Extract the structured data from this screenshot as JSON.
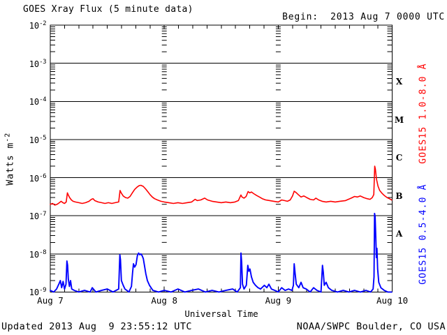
{
  "header": {
    "title": "GOES Xray Flux (5 minute data)",
    "begin_label": "Begin:  2013 Aug 7 0000 UTC"
  },
  "footer": {
    "updated": "Updated 2013 Aug  9 23:55:12 UTC",
    "source": "NOAA/SWPC Boulder, CO USA"
  },
  "chart_data": {
    "type": "line",
    "title": "GOES Xray Flux (5 minute data)",
    "xlabel": "Universal Time",
    "ylabel_base": "Watts m",
    "ylabel_exp": "-2",
    "background_color": "#ffffff",
    "axis_color": "#000000",
    "x_start_label": "2013 Aug 7 0000 UTC",
    "x_range_days": 3,
    "x_minor_tick_hours": 3,
    "x_tick_labels": [
      "Aug 7",
      "Aug 8",
      "Aug 9",
      "Aug 10"
    ],
    "y_tick_exponents": [
      "-2",
      "-3",
      "-4",
      "-5",
      "-6",
      "-7",
      "-8",
      "-9"
    ],
    "ylim": [
      1e-09,
      0.01
    ],
    "class_letters": [
      "X",
      "M",
      "C",
      "B",
      "A"
    ],
    "grid": {
      "horizontal_decade_lines": true,
      "vertical_day_dash_columns": true,
      "legend_position": "right-rotated"
    },
    "series": [
      {
        "id": "goes15-long",
        "name": "GOES15 1.0-8.0 Å",
        "color": "#ff0000",
        "points": [
          [
            0.0,
            2e-07
          ],
          [
            0.02,
            2.1e-07
          ],
          [
            0.04,
            1.9e-07
          ],
          [
            0.06,
            2e-07
          ],
          [
            0.08,
            2.2e-07
          ],
          [
            0.095,
            2.4e-07
          ],
          [
            0.11,
            2.2e-07
          ],
          [
            0.125,
            2.1e-07
          ],
          [
            0.14,
            2.3e-07
          ],
          [
            0.15,
            4e-07
          ],
          [
            0.158,
            3.5e-07
          ],
          [
            0.17,
            3e-07
          ],
          [
            0.185,
            2.6e-07
          ],
          [
            0.2,
            2.4e-07
          ],
          [
            0.22,
            2.3e-07
          ],
          [
            0.25,
            2.2e-07
          ],
          [
            0.28,
            2.1e-07
          ],
          [
            0.31,
            2.2e-07
          ],
          [
            0.34,
            2.4e-07
          ],
          [
            0.36,
            2.7e-07
          ],
          [
            0.375,
            2.8e-07
          ],
          [
            0.39,
            2.5e-07
          ],
          [
            0.42,
            2.3e-07
          ],
          [
            0.45,
            2.2e-07
          ],
          [
            0.48,
            2.1e-07
          ],
          [
            0.51,
            2.2e-07
          ],
          [
            0.54,
            2.1e-07
          ],
          [
            0.57,
            2.2e-07
          ],
          [
            0.6,
            2.3e-07
          ],
          [
            0.612,
            4.6e-07
          ],
          [
            0.622,
            4e-07
          ],
          [
            0.64,
            3.3e-07
          ],
          [
            0.66,
            3e-07
          ],
          [
            0.68,
            2.9e-07
          ],
          [
            0.7,
            3.2e-07
          ],
          [
            0.72,
            4e-07
          ],
          [
            0.74,
            4.9e-07
          ],
          [
            0.76,
            5.6e-07
          ],
          [
            0.78,
            6.2e-07
          ],
          [
            0.795,
            6.3e-07
          ],
          [
            0.815,
            5.9e-07
          ],
          [
            0.835,
            5.1e-07
          ],
          [
            0.855,
            4.3e-07
          ],
          [
            0.875,
            3.6e-07
          ],
          [
            0.895,
            3.1e-07
          ],
          [
            0.915,
            2.8e-07
          ],
          [
            0.94,
            2.6e-07
          ],
          [
            0.97,
            2.4e-07
          ],
          [
            1.0,
            2.3e-07
          ],
          [
            1.04,
            2.2e-07
          ],
          [
            1.08,
            2.1e-07
          ],
          [
            1.12,
            2.2e-07
          ],
          [
            1.16,
            2.1e-07
          ],
          [
            1.2,
            2.2e-07
          ],
          [
            1.24,
            2.3e-07
          ],
          [
            1.27,
            2.7e-07
          ],
          [
            1.29,
            2.5e-07
          ],
          [
            1.32,
            2.6e-07
          ],
          [
            1.355,
            2.9e-07
          ],
          [
            1.38,
            2.6e-07
          ],
          [
            1.42,
            2.4e-07
          ],
          [
            1.46,
            2.3e-07
          ],
          [
            1.5,
            2.2e-07
          ],
          [
            1.54,
            2.3e-07
          ],
          [
            1.58,
            2.2e-07
          ],
          [
            1.62,
            2.3e-07
          ],
          [
            1.65,
            2.5e-07
          ],
          [
            1.672,
            3.5e-07
          ],
          [
            1.682,
            3.1e-07
          ],
          [
            1.7,
            2.9e-07
          ],
          [
            1.718,
            3.2e-07
          ],
          [
            1.735,
            4.3e-07
          ],
          [
            1.75,
            4e-07
          ],
          [
            1.765,
            4.2e-07
          ],
          [
            1.785,
            3.8e-07
          ],
          [
            1.81,
            3.4e-07
          ],
          [
            1.835,
            3.1e-07
          ],
          [
            1.86,
            2.8e-07
          ],
          [
            1.89,
            2.6e-07
          ],
          [
            1.925,
            2.5e-07
          ],
          [
            1.96,
            2.4e-07
          ],
          [
            2.0,
            2.3e-07
          ],
          [
            2.03,
            2.6e-07
          ],
          [
            2.055,
            2.5e-07
          ],
          [
            2.08,
            2.4e-07
          ],
          [
            2.105,
            2.6e-07
          ],
          [
            2.125,
            3.3e-07
          ],
          [
            2.14,
            4.4e-07
          ],
          [
            2.155,
            4.1e-07
          ],
          [
            2.175,
            3.6e-07
          ],
          [
            2.2,
            3.1e-07
          ],
          [
            2.225,
            3.3e-07
          ],
          [
            2.25,
            3e-07
          ],
          [
            2.28,
            2.7e-07
          ],
          [
            2.31,
            2.6e-07
          ],
          [
            2.33,
            2.9e-07
          ],
          [
            2.355,
            2.6e-07
          ],
          [
            2.385,
            2.4e-07
          ],
          [
            2.42,
            2.3e-07
          ],
          [
            2.46,
            2.4e-07
          ],
          [
            2.5,
            2.3e-07
          ],
          [
            2.54,
            2.4e-07
          ],
          [
            2.59,
            2.5e-07
          ],
          [
            2.64,
            2.9e-07
          ],
          [
            2.67,
            3.2e-07
          ],
          [
            2.695,
            3.1e-07
          ],
          [
            2.72,
            3.3e-07
          ],
          [
            2.75,
            3e-07
          ],
          [
            2.78,
            2.8e-07
          ],
          [
            2.805,
            2.7e-07
          ],
          [
            2.825,
            3e-07
          ],
          [
            2.838,
            3.6e-07
          ],
          [
            2.846,
            2e-06
          ],
          [
            2.852,
            1.7e-06
          ],
          [
            2.862,
            9e-07
          ],
          [
            2.875,
            6e-07
          ],
          [
            2.89,
            4.6e-07
          ],
          [
            2.91,
            3.9e-07
          ],
          [
            2.93,
            3.4e-07
          ],
          [
            2.955,
            3e-07
          ],
          [
            2.975,
            2.8e-07
          ],
          [
            2.995,
            2.6e-07
          ]
        ]
      },
      {
        "id": "goes15-short",
        "name": "GOES15 0.5-4.0 Å",
        "color": "#0000ff",
        "points": [
          [
            0.0,
            1.1e-09
          ],
          [
            0.03,
            1e-09
          ],
          [
            0.055,
            1.2e-09
          ],
          [
            0.075,
            1.6e-09
          ],
          [
            0.088,
            2e-09
          ],
          [
            0.1,
            1.3e-09
          ],
          [
            0.112,
            1.9e-09
          ],
          [
            0.125,
            1.2e-09
          ],
          [
            0.138,
            1.6e-09
          ],
          [
            0.146,
            6.5e-09
          ],
          [
            0.152,
            5e-09
          ],
          [
            0.158,
            2.2e-09
          ],
          [
            0.168,
            1.4e-09
          ],
          [
            0.178,
            2e-09
          ],
          [
            0.188,
            1.2e-09
          ],
          [
            0.21,
            1.1e-09
          ],
          [
            0.25,
            1e-09
          ],
          [
            0.3,
            1.1e-09
          ],
          [
            0.35,
            1e-09
          ],
          [
            0.368,
            1.3e-09
          ],
          [
            0.4,
            1e-09
          ],
          [
            0.45,
            1.1e-09
          ],
          [
            0.5,
            1.2e-09
          ],
          [
            0.55,
            1e-09
          ],
          [
            0.6,
            1.2e-09
          ],
          [
            0.61,
            9.5e-09
          ],
          [
            0.616,
            7e-09
          ],
          [
            0.624,
            2e-09
          ],
          [
            0.64,
            1.5e-09
          ],
          [
            0.655,
            1.2e-09
          ],
          [
            0.69,
            1e-09
          ],
          [
            0.712,
            1.4e-09
          ],
          [
            0.722,
            3.2e-09
          ],
          [
            0.73,
            5.5e-09
          ],
          [
            0.74,
            4.5e-09
          ],
          [
            0.752,
            5.2e-09
          ],
          [
            0.764,
            9e-09
          ],
          [
            0.775,
            1.05e-08
          ],
          [
            0.785,
            9.5e-09
          ],
          [
            0.795,
            1e-08
          ],
          [
            0.806,
            9e-09
          ],
          [
            0.816,
            7.5e-09
          ],
          [
            0.826,
            5e-09
          ],
          [
            0.838,
            3e-09
          ],
          [
            0.852,
            2e-09
          ],
          [
            0.87,
            1.5e-09
          ],
          [
            0.9,
            1.1e-09
          ],
          [
            0.95,
            1e-09
          ],
          [
            1.0,
            1.1e-09
          ],
          [
            1.06,
            1e-09
          ],
          [
            1.12,
            1.2e-09
          ],
          [
            1.18,
            1e-09
          ],
          [
            1.24,
            1.1e-09
          ],
          [
            1.3,
            1.2e-09
          ],
          [
            1.36,
            1e-09
          ],
          [
            1.42,
            1.1e-09
          ],
          [
            1.48,
            1e-09
          ],
          [
            1.54,
            1.1e-09
          ],
          [
            1.6,
            1.2e-09
          ],
          [
            1.64,
            1e-09
          ],
          [
            1.668,
            1.3e-09
          ],
          [
            1.673,
            1.05e-08
          ],
          [
            1.679,
            6e-09
          ],
          [
            1.686,
            1.6e-09
          ],
          [
            1.7,
            1.2e-09
          ],
          [
            1.72,
            1.5e-09
          ],
          [
            1.733,
            5e-09
          ],
          [
            1.742,
            3.5e-09
          ],
          [
            1.752,
            4e-09
          ],
          [
            1.765,
            2.5e-09
          ],
          [
            1.78,
            1.8e-09
          ],
          [
            1.8,
            1.5e-09
          ],
          [
            1.822,
            1.3e-09
          ],
          [
            1.845,
            1.2e-09
          ],
          [
            1.878,
            1.5e-09
          ],
          [
            1.9,
            1.3e-09
          ],
          [
            1.918,
            1.6e-09
          ],
          [
            1.94,
            1.2e-09
          ],
          [
            1.97,
            1.1e-09
          ],
          [
            2.0,
            1e-09
          ],
          [
            2.03,
            1.3e-09
          ],
          [
            2.06,
            1.1e-09
          ],
          [
            2.09,
            1.2e-09
          ],
          [
            2.12,
            1.1e-09
          ],
          [
            2.133,
            1.5e-09
          ],
          [
            2.14,
            5.5e-09
          ],
          [
            2.148,
            3e-09
          ],
          [
            2.158,
            1.6e-09
          ],
          [
            2.18,
            1.3e-09
          ],
          [
            2.2,
            1.8e-09
          ],
          [
            2.218,
            1.3e-09
          ],
          [
            2.245,
            1.2e-09
          ],
          [
            2.28,
            1e-09
          ],
          [
            2.31,
            1.3e-09
          ],
          [
            2.34,
            1.1e-09
          ],
          [
            2.375,
            1e-09
          ],
          [
            2.388,
            5e-09
          ],
          [
            2.395,
            3.3e-09
          ],
          [
            2.404,
            1.5e-09
          ],
          [
            2.42,
            1.8e-09
          ],
          [
            2.44,
            1.3e-09
          ],
          [
            2.47,
            1.1e-09
          ],
          [
            2.52,
            1e-09
          ],
          [
            2.57,
            1.1e-09
          ],
          [
            2.62,
            1e-09
          ],
          [
            2.67,
            1.1e-09
          ],
          [
            2.72,
            1e-09
          ],
          [
            2.77,
            1.1e-09
          ],
          [
            2.81,
            1e-09
          ],
          [
            2.832,
            1.2e-09
          ],
          [
            2.84,
            2.5e-09
          ],
          [
            2.845,
            1.15e-07
          ],
          [
            2.85,
            9.5e-08
          ],
          [
            2.856,
            2.5e-08
          ],
          [
            2.861,
            8e-09
          ],
          [
            2.866,
            1.4e-08
          ],
          [
            2.872,
            4e-09
          ],
          [
            2.882,
            1.8e-09
          ],
          [
            2.9,
            1.3e-09
          ],
          [
            2.93,
            1.1e-09
          ],
          [
            2.96,
            1e-09
          ],
          [
            2.995,
            1e-09
          ]
        ]
      }
    ]
  }
}
